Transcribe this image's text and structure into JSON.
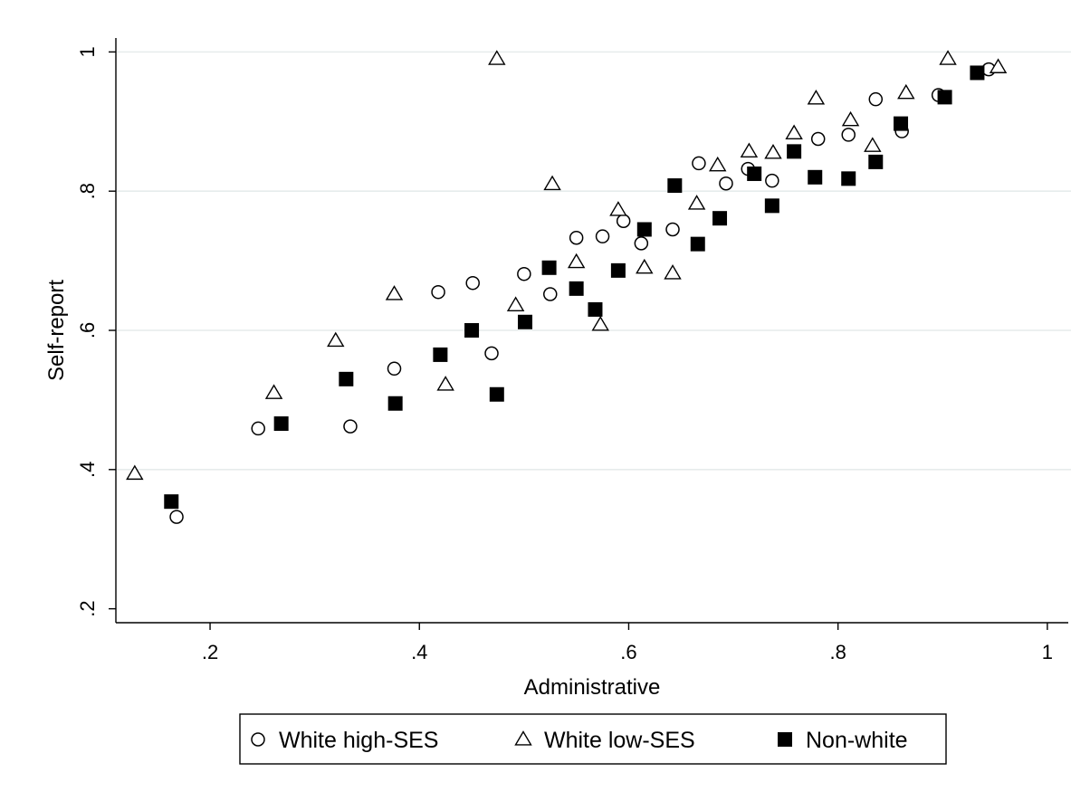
{
  "chart_data": {
    "type": "scatter",
    "title": "",
    "xlabel": "Administrative",
    "ylabel": "Self-report",
    "xlim": [
      0.11,
      1.02
    ],
    "ylim": [
      0.18,
      1.02
    ],
    "x_ticks": [
      0.2,
      0.4,
      0.6,
      0.8,
      1.0
    ],
    "x_tick_labels": [
      ".2",
      ".4",
      ".6",
      ".8",
      "1"
    ],
    "y_ticks": [
      0.2,
      0.4,
      0.6,
      0.8,
      1.0
    ],
    "y_tick_labels": [
      ".2",
      ".4",
      ".6",
      ".8",
      "1"
    ],
    "grid": "horizontal",
    "legend_position": "bottom",
    "series": [
      {
        "name": "White high-SES",
        "marker": "circle-hollow",
        "color": "#000000",
        "points": [
          [
            0.168,
            0.332
          ],
          [
            0.246,
            0.459
          ],
          [
            0.334,
            0.462
          ],
          [
            0.376,
            0.545
          ],
          [
            0.418,
            0.655
          ],
          [
            0.451,
            0.668
          ],
          [
            0.469,
            0.567
          ],
          [
            0.5,
            0.681
          ],
          [
            0.525,
            0.652
          ],
          [
            0.55,
            0.733
          ],
          [
            0.575,
            0.735
          ],
          [
            0.595,
            0.757
          ],
          [
            0.612,
            0.725
          ],
          [
            0.642,
            0.745
          ],
          [
            0.667,
            0.84
          ],
          [
            0.693,
            0.811
          ],
          [
            0.714,
            0.832
          ],
          [
            0.737,
            0.815
          ],
          [
            0.781,
            0.875
          ],
          [
            0.81,
            0.881
          ],
          [
            0.836,
            0.932
          ],
          [
            0.861,
            0.886
          ],
          [
            0.896,
            0.938
          ],
          [
            0.944,
            0.975
          ]
        ]
      },
      {
        "name": "White low-SES",
        "marker": "triangle-hollow",
        "color": "#000000",
        "points": [
          [
            0.128,
            0.394
          ],
          [
            0.261,
            0.51
          ],
          [
            0.32,
            0.585
          ],
          [
            0.376,
            0.652
          ],
          [
            0.425,
            0.522
          ],
          [
            0.474,
            0.99
          ],
          [
            0.492,
            0.636
          ],
          [
            0.527,
            0.81
          ],
          [
            0.55,
            0.698
          ],
          [
            0.573,
            0.608
          ],
          [
            0.59,
            0.773
          ],
          [
            0.615,
            0.69
          ],
          [
            0.642,
            0.682
          ],
          [
            0.665,
            0.782
          ],
          [
            0.685,
            0.837
          ],
          [
            0.715,
            0.857
          ],
          [
            0.738,
            0.855
          ],
          [
            0.758,
            0.883
          ],
          [
            0.779,
            0.933
          ],
          [
            0.812,
            0.902
          ],
          [
            0.833,
            0.865
          ],
          [
            0.865,
            0.941
          ],
          [
            0.905,
            0.99
          ],
          [
            0.953,
            0.978
          ]
        ]
      },
      {
        "name": "Non-white",
        "marker": "square-filled",
        "color": "#000000",
        "points": [
          [
            0.163,
            0.354
          ],
          [
            0.268,
            0.466
          ],
          [
            0.33,
            0.53
          ],
          [
            0.377,
            0.495
          ],
          [
            0.42,
            0.565
          ],
          [
            0.45,
            0.6
          ],
          [
            0.474,
            0.508
          ],
          [
            0.501,
            0.612
          ],
          [
            0.524,
            0.69
          ],
          [
            0.55,
            0.66
          ],
          [
            0.568,
            0.63
          ],
          [
            0.59,
            0.686
          ],
          [
            0.615,
            0.745
          ],
          [
            0.644,
            0.808
          ],
          [
            0.666,
            0.724
          ],
          [
            0.687,
            0.761
          ],
          [
            0.72,
            0.825
          ],
          [
            0.737,
            0.779
          ],
          [
            0.758,
            0.857
          ],
          [
            0.778,
            0.82
          ],
          [
            0.81,
            0.818
          ],
          [
            0.836,
            0.842
          ],
          [
            0.86,
            0.897
          ],
          [
            0.902,
            0.935
          ],
          [
            0.933,
            0.97
          ]
        ]
      }
    ]
  }
}
